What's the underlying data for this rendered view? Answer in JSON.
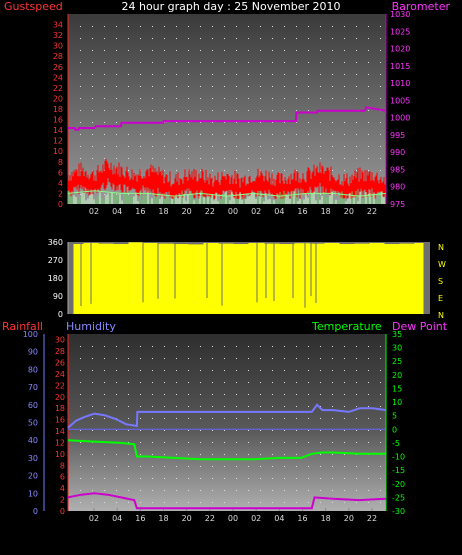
{
  "title": "24 hour graph day : 25 November 2010",
  "colors": {
    "gust": "#ff0000",
    "baro": "#cc00cc",
    "humidity": "#7777ff",
    "temperature": "#00ff00",
    "dewpoint": "#cc00cc",
    "rainfall": "#ff0000",
    "wind_dir": "#ffff00",
    "avg_speed": "#88ff88",
    "tick_text": "#dddddd"
  },
  "chart_data": [
    {
      "type": "line",
      "panel": "wind-pressure",
      "left_label": "Gustspeed",
      "right_label": "Barometer",
      "y_left_ticks": [
        0,
        2,
        4,
        6,
        8,
        10,
        12,
        14,
        16,
        18,
        20,
        22,
        24,
        26,
        28,
        30,
        32,
        34
      ],
      "y_right_ticks": [
        975,
        980,
        985,
        990,
        995,
        1000,
        1005,
        1010,
        1015,
        1020,
        1025,
        1030
      ],
      "ylim_left": [
        0,
        36
      ],
      "ylim_right": [
        975,
        1030
      ],
      "x_ticks": [
        "02",
        "04",
        "16",
        "18",
        "20",
        "22",
        "00",
        "02",
        "04",
        "16",
        "18",
        "20",
        "22"
      ],
      "series": [
        {
          "name": "Barometer",
          "axis": "right",
          "x": [
            0,
            0.25,
            0.27,
            0.4,
            0.42,
            1.0,
            1.05,
            2.0,
            2.02,
            3.6,
            3.62,
            4.2,
            6.0,
            7.0,
            8.0,
            8.6,
            8.62,
            9.4,
            9.42,
            10.6,
            11.2,
            11.25,
            12.0
          ],
          "values": [
            997,
            997,
            996.5,
            996.5,
            997,
            997,
            997.5,
            997.5,
            998.5,
            998.5,
            999,
            999,
            999,
            999,
            999,
            999,
            1001.5,
            1001.5,
            1002,
            1002,
            1002,
            1003,
            1002
          ]
        },
        {
          "name": "Gust",
          "axis": "left",
          "x": [
            0,
            0.5,
            1,
            1.5,
            2,
            2.5,
            3,
            3.5,
            4,
            4.5,
            5,
            5.5,
            6,
            6.5,
            7,
            7.5,
            8,
            8.5,
            9,
            9.5,
            10,
            10.5,
            11,
            11.5,
            12
          ],
          "values": [
            4,
            5,
            4,
            6,
            5,
            4,
            5,
            4,
            3,
            4,
            4,
            3,
            4,
            3,
            4,
            4,
            3,
            4,
            4,
            5,
            4,
            3,
            4,
            4,
            3
          ]
        },
        {
          "name": "Average",
          "axis": "left",
          "x": [
            0,
            1,
            2,
            3,
            4,
            5,
            6,
            7,
            8,
            9,
            10,
            11,
            12
          ],
          "values": [
            2,
            2.5,
            2,
            2,
            1.5,
            2,
            1.5,
            2,
            1.5,
            2,
            2,
            1.5,
            2
          ]
        }
      ]
    },
    {
      "type": "bar",
      "panel": "wind-direction",
      "y_ticks": [
        0,
        90,
        180,
        270,
        360
      ],
      "ylim": [
        0,
        360
      ],
      "compass": [
        "N",
        "W",
        "S",
        "E",
        "N"
      ],
      "series": [
        {
          "name": "Direction",
          "x": [
            0,
            0.5,
            1,
            1.5,
            2,
            2.5,
            3,
            3.5,
            4,
            4.5,
            5,
            5.5,
            6,
            6.5,
            7,
            7.5,
            8,
            8.5,
            9,
            9.5,
            10,
            10.5,
            11,
            11.5,
            12
          ],
          "values": [
            350,
            355,
            352,
            350,
            358,
            355,
            352,
            350,
            348,
            355,
            352,
            350,
            355,
            352,
            350,
            354,
            352,
            355,
            350,
            352,
            355,
            350,
            352,
            355,
            350
          ]
        }
      ]
    },
    {
      "type": "line",
      "panel": "temp-humidity",
      "left_labels": [
        "Rainfall",
        "Humidity"
      ],
      "right_labels": [
        "Temperature",
        "Dew Point"
      ],
      "y_rain_ticks": [
        0,
        2,
        4,
        6,
        8,
        10,
        12,
        14,
        16,
        18,
        20,
        22,
        24,
        26,
        28,
        30
      ],
      "y_hum_ticks": [
        0,
        10,
        20,
        30,
        40,
        50,
        60,
        70,
        80,
        90,
        100
      ],
      "y_temp_ticks": [
        -30,
        -25,
        -20,
        -15,
        -10,
        -5,
        0,
        5,
        10,
        15,
        20,
        25,
        30,
        35
      ],
      "ylim_hum": [
        0,
        100
      ],
      "ylim_temp": [
        -30,
        35
      ],
      "x_ticks": [
        "02",
        "04",
        "16",
        "18",
        "20",
        "22",
        "00",
        "02",
        "04",
        "16",
        "18",
        "20",
        "22"
      ],
      "series": [
        {
          "name": "Humidity",
          "axis": "humidity",
          "x": [
            0,
            0.3,
            0.6,
            1.0,
            1.4,
            1.8,
            2.2,
            2.6,
            2.62,
            4,
            6,
            8,
            9.2,
            9.4,
            9.6,
            10,
            10.6,
            11,
            11.5,
            12
          ],
          "values": [
            47,
            51,
            53,
            55,
            54,
            52,
            49,
            48,
            56,
            56,
            56,
            56,
            56,
            60,
            57,
            57,
            56,
            58,
            58,
            57
          ]
        },
        {
          "name": "Temperature",
          "axis": "temp",
          "x": [
            0,
            1,
            2,
            2.5,
            2.6,
            3,
            4,
            5,
            6,
            7,
            8,
            8.8,
            9.2,
            9.6,
            10,
            11,
            12
          ],
          "values": [
            -4,
            -4.5,
            -5,
            -5.5,
            -10,
            -10,
            -10.5,
            -11,
            -11,
            -11,
            -10.5,
            -10.5,
            -9,
            -8.5,
            -8.5,
            -9,
            -9
          ]
        },
        {
          "name": "Dew Point",
          "axis": "temp",
          "x": [
            0,
            0.5,
            1,
            1.5,
            2,
            2.5,
            2.6,
            4,
            6,
            8,
            9.2,
            9.3,
            10,
            11,
            12
          ],
          "values": [
            -25,
            -24,
            -23.5,
            -24,
            -25,
            -26,
            -29,
            -29,
            -29,
            -29,
            -29,
            -25,
            -25.5,
            -26,
            -25.5
          ]
        }
      ]
    }
  ]
}
